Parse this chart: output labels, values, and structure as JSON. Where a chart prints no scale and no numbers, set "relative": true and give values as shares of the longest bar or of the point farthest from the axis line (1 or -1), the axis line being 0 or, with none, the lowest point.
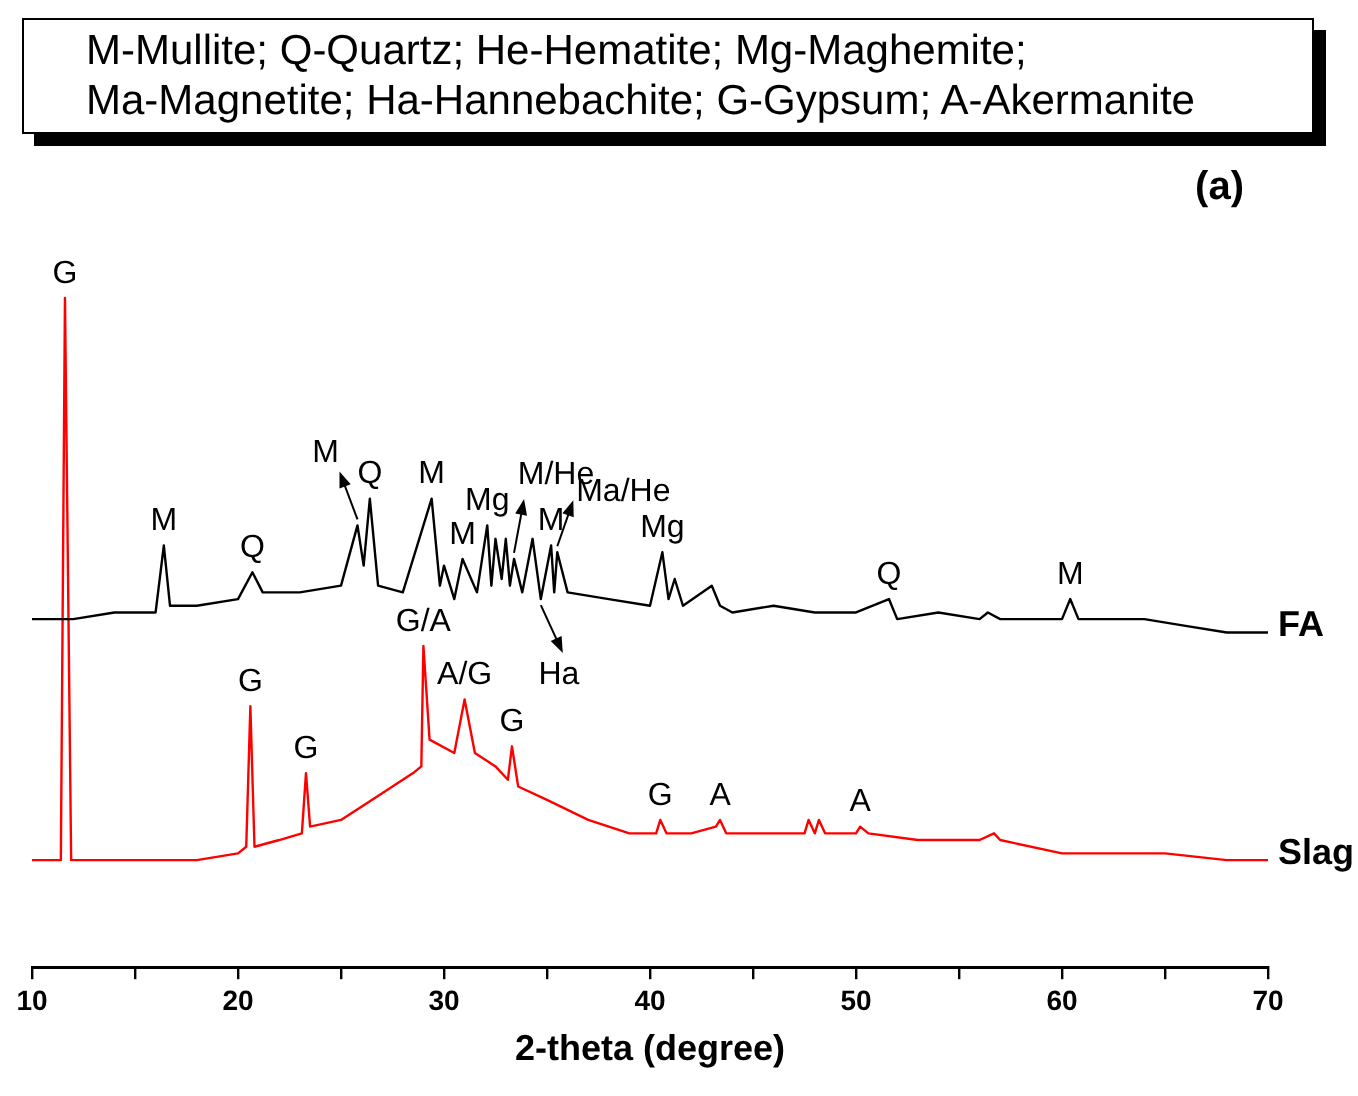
{
  "chart_data": {
    "type": "line",
    "title": "(a)",
    "xlabel": "2-theta (degree)",
    "relative": true,
    "marker": "none",
    "line_style": "solid",
    "grid": false,
    "legend": false,
    "tick_labels": "x",
    "xlim": [
      10,
      70
    ],
    "xticks": [
      10,
      {
        "value": 15,
        "label": null
      },
      20,
      {
        "value": 25,
        "label": null
      },
      30,
      {
        "value": 35,
        "label": null
      },
      40,
      {
        "value": 45,
        "label": null
      },
      50,
      {
        "value": 55,
        "label": null
      },
      60,
      {
        "value": 65,
        "label": null
      },
      70
    ],
    "series": [
      {
        "name": "FA",
        "color": "#000000",
        "x": [
          10,
          12,
          14,
          16,
          16.4,
          16.7,
          18,
          20,
          20.7,
          21.2,
          23,
          25,
          25.8,
          26.1,
          26.4,
          26.8,
          28,
          29.4,
          29.8,
          30.0,
          30.5,
          30.9,
          31.6,
          32.1,
          32.3,
          32.5,
          32.8,
          33.0,
          33.2,
          33.4,
          33.8,
          34.3,
          34.7,
          35.2,
          35.35,
          35.5,
          36,
          38,
          40,
          40.6,
          40.9,
          41.2,
          41.6,
          43,
          43.4,
          44,
          46,
          48,
          50,
          51.6,
          52,
          54,
          56,
          56.4,
          57,
          58,
          60,
          60.4,
          60.8,
          62,
          64,
          66,
          68,
          70
        ],
        "values": [
          0.52,
          0.52,
          0.53,
          0.53,
          0.63,
          0.54,
          0.54,
          0.55,
          0.59,
          0.56,
          0.56,
          0.57,
          0.66,
          0.6,
          0.7,
          0.57,
          0.56,
          0.7,
          0.57,
          0.6,
          0.55,
          0.61,
          0.56,
          0.66,
          0.57,
          0.64,
          0.58,
          0.64,
          0.57,
          0.61,
          0.56,
          0.64,
          0.55,
          0.63,
          0.56,
          0.62,
          0.56,
          0.55,
          0.54,
          0.62,
          0.55,
          0.58,
          0.54,
          0.57,
          0.54,
          0.53,
          0.54,
          0.53,
          0.53,
          0.55,
          0.52,
          0.53,
          0.52,
          0.53,
          0.52,
          0.52,
          0.52,
          0.55,
          0.52,
          0.52,
          0.52,
          0.51,
          0.5,
          0.5
        ]
      },
      {
        "name": "Slag",
        "color": "#ff0000",
        "x": [
          10,
          11.4,
          11.6,
          11.9,
          14,
          16,
          18,
          20,
          20.4,
          20.6,
          20.8,
          22,
          23.1,
          23.3,
          23.5,
          25,
          27,
          28.5,
          28.9,
          29.0,
          29.3,
          30.5,
          31.0,
          31.5,
          32.5,
          33.1,
          33.3,
          33.6,
          35,
          37,
          39,
          40.3,
          40.5,
          40.8,
          42,
          43.2,
          43.4,
          43.7,
          46,
          47.5,
          47.7,
          48.0,
          48.2,
          48.5,
          50,
          50.2,
          50.6,
          53,
          56,
          56.7,
          57,
          60,
          62,
          65,
          68,
          70
        ],
        "values": [
          0.16,
          0.16,
          1,
          0.16,
          0.16,
          0.16,
          0.16,
          0.17,
          0.18,
          0.39,
          0.18,
          0.19,
          0.2,
          0.29,
          0.21,
          0.22,
          0.26,
          0.29,
          0.3,
          0.48,
          0.34,
          0.32,
          0.4,
          0.32,
          0.3,
          0.28,
          0.33,
          0.27,
          0.25,
          0.22,
          0.2,
          0.2,
          0.22,
          0.2,
          0.2,
          0.21,
          0.22,
          0.2,
          0.2,
          0.2,
          0.22,
          0.2,
          0.22,
          0.2,
          0.2,
          0.21,
          0.2,
          0.19,
          0.19,
          0.2,
          0.19,
          0.17,
          0.17,
          0.17,
          0.16,
          0.16
        ]
      }
    ],
    "annotations": [
      "M-Mullite; Q-Quartz; He-Hematite; Mg-Maghemite; Ma-Magnetite; Ha-Hannebachite; G-Gypsum; A-Akermanite",
      {
        "text": "G",
        "x": 11.6,
        "y": 1
      },
      {
        "text": "M",
        "x": 16.4,
        "y": 0.63
      },
      {
        "text": "Q",
        "x": 20.7,
        "y": 0.59
      },
      {
        "text": "M",
        "x": 25.8,
        "y": 0.66
      },
      {
        "text": "Q",
        "x": 26.4,
        "y": 0.7
      },
      {
        "text": "M",
        "x": 29.4,
        "y": 0.7
      },
      {
        "text": "M",
        "x": 30.9,
        "y": 0.61
      },
      {
        "text": "Mg",
        "x": 32.1,
        "y": 0.66
      },
      {
        "text": "M/He",
        "x": 33.4,
        "y": 0.61
      },
      {
        "text": "M",
        "x": 35.2,
        "y": 0.63
      },
      {
        "text": "Ma/He",
        "x": 35.5,
        "y": 0.62
      },
      {
        "text": "Ha",
        "x": 34.7,
        "y": 0.55
      },
      {
        "text": "Mg",
        "x": 40.6,
        "y": 0.62
      },
      {
        "text": "Q",
        "x": 51.6,
        "y": 0.55
      },
      {
        "text": "M",
        "x": 60.4,
        "y": 0.55
      },
      {
        "text": "G",
        "x": 20.6,
        "y": 0.39
      },
      {
        "text": "G",
        "x": 23.3,
        "y": 0.29
      },
      {
        "text": "G/A",
        "x": 29.0,
        "y": 0.48
      },
      {
        "text": "A/G",
        "x": 31.0,
        "y": 0.4
      },
      {
        "text": "G",
        "x": 33.3,
        "y": 0.33
      },
      {
        "text": "G",
        "x": 40.5,
        "y": 0.22
      },
      {
        "text": "A",
        "x": 43.4,
        "y": 0.22
      },
      {
        "text": "A",
        "x": 50.2,
        "y": 0.21
      }
    ]
  }
}
